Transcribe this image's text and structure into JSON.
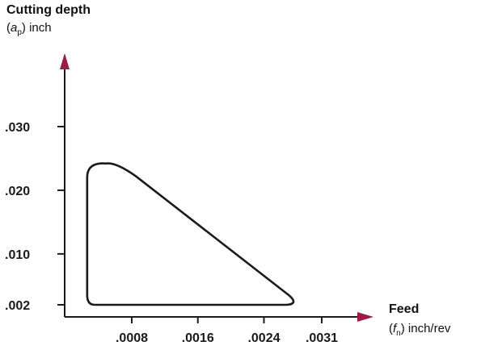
{
  "chart_data": {
    "type": "area",
    "title": "",
    "ylabel": {
      "title": "Cutting depth",
      "symbol": "a",
      "subscript": "p",
      "unit": "inch"
    },
    "xlabel": {
      "title": "Feed",
      "symbol": "f",
      "subscript": "n",
      "unit": "inch/rev"
    },
    "x_ticks": [
      {
        "label": ".0008",
        "value": 0.0008
      },
      {
        "label": ".0016",
        "value": 0.0016
      },
      {
        "label": ".0024",
        "value": 0.0024
      },
      {
        "label": ".0031",
        "value": 0.0031
      }
    ],
    "y_ticks": [
      {
        "label": ".002",
        "value": 0.002
      },
      {
        "label": ".010",
        "value": 0.01
      },
      {
        "label": ".020",
        "value": 0.02
      },
      {
        "label": ".030",
        "value": 0.03
      }
    ],
    "series": [
      {
        "points": [
          {
            "x": 0.00026,
            "y": 0.0025
          },
          {
            "x": 0.00026,
            "y": 0.023
          },
          {
            "x": 0.00045,
            "y": 0.0242
          },
          {
            "x": 0.00085,
            "y": 0.0222
          },
          {
            "x": 0.00275,
            "y": 0.002
          },
          {
            "x": 0.00035,
            "y": 0.002
          }
        ]
      }
    ],
    "color": "#1a1a1a",
    "axis_arrow_color": "#9b1b4a",
    "grid": false,
    "legend": "none"
  }
}
